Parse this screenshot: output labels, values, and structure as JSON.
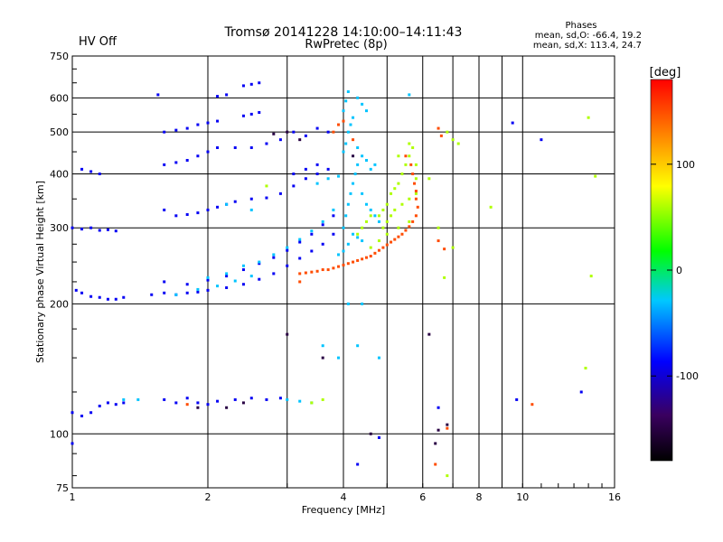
{
  "header": {
    "status": "HV Off",
    "status_color": "#cc0000",
    "title": "Tromsø 20141228 14:10:00–14:11:43",
    "subtitle": "RwPretec (8p)",
    "stats_heading": "Phases",
    "stats_o": "mean, sd,O: -66.4, 19.2",
    "stats_x": "mean, sd,X: 113.4, 24.7"
  },
  "chart_data": {
    "type": "scatter",
    "xlabel": "Frequency [MHz]",
    "ylabel": "Stationary phase Virtual Height [km]",
    "x_scale": "log",
    "y_scale": "log",
    "xlim": [
      1,
      16
    ],
    "ylim": [
      75,
      750
    ],
    "x_ticks": [
      1,
      2,
      4,
      6,
      8,
      10,
      16
    ],
    "x_minor": [
      3,
      5,
      7,
      9
    ],
    "y_ticks": [
      75,
      100,
      200,
      300,
      400,
      500,
      600,
      750
    ],
    "grid": true,
    "colorbar": {
      "label": "[deg]",
      "ticks": [
        100,
        0,
        -100
      ],
      "range": [
        -180,
        180
      ],
      "colors": [
        "#000000",
        "#3a0060",
        "#0000ff",
        "#00c8ff",
        "#00ff00",
        "#ffff00",
        "#ff8000",
        "#ff0000"
      ]
    },
    "series": [
      {
        "color_phase": -90,
        "points": [
          [
            1.05,
            410
          ],
          [
            1.1,
            405
          ],
          [
            1.15,
            400
          ],
          [
            1.0,
            300
          ],
          [
            1.05,
            298
          ],
          [
            1.1,
            300
          ],
          [
            1.15,
            296
          ],
          [
            1.2,
            297
          ],
          [
            1.25,
            295
          ],
          [
            1.02,
            215
          ],
          [
            1.05,
            212
          ],
          [
            1.1,
            208
          ],
          [
            1.15,
            207
          ],
          [
            1.2,
            205
          ],
          [
            1.25,
            205
          ],
          [
            1.3,
            207
          ],
          [
            1.0,
            112
          ],
          [
            1.05,
            110
          ],
          [
            1.1,
            112
          ],
          [
            1.15,
            116
          ],
          [
            1.2,
            118
          ],
          [
            1.25,
            117
          ],
          [
            1.3,
            118
          ],
          [
            1.6,
            420
          ],
          [
            1.7,
            425
          ],
          [
            1.8,
            430
          ],
          [
            1.9,
            440
          ],
          [
            2.0,
            450
          ],
          [
            2.1,
            460
          ],
          [
            1.6,
            500
          ],
          [
            1.7,
            505
          ],
          [
            1.8,
            510
          ],
          [
            1.9,
            520
          ],
          [
            2.0,
            525
          ],
          [
            2.1,
            530
          ],
          [
            2.3,
            460
          ],
          [
            2.5,
            460
          ],
          [
            2.7,
            470
          ],
          [
            2.9,
            480
          ],
          [
            3.1,
            500
          ],
          [
            3.3,
            490
          ],
          [
            3.5,
            510
          ],
          [
            3.7,
            500
          ],
          [
            2.4,
            545
          ],
          [
            2.5,
            550
          ],
          [
            2.6,
            555
          ],
          [
            2.4,
            640
          ],
          [
            2.5,
            645
          ],
          [
            2.6,
            650
          ],
          [
            1.6,
            330
          ],
          [
            1.7,
            320
          ],
          [
            1.8,
            322
          ],
          [
            1.9,
            325
          ],
          [
            2.0,
            330
          ],
          [
            2.1,
            335
          ],
          [
            2.2,
            340
          ],
          [
            2.3,
            345
          ],
          [
            2.5,
            350
          ],
          [
            2.7,
            352
          ],
          [
            2.9,
            360
          ],
          [
            3.1,
            375
          ],
          [
            3.3,
            390
          ],
          [
            3.5,
            400
          ],
          [
            3.7,
            410
          ],
          [
            1.5,
            210
          ],
          [
            1.6,
            212
          ],
          [
            1.7,
            210
          ],
          [
            1.8,
            212
          ],
          [
            1.9,
            213
          ],
          [
            2.0,
            215
          ],
          [
            2.2,
            218
          ],
          [
            2.4,
            222
          ],
          [
            2.6,
            228
          ],
          [
            2.8,
            235
          ],
          [
            3.0,
            245
          ],
          [
            3.2,
            255
          ],
          [
            3.4,
            265
          ],
          [
            3.6,
            275
          ],
          [
            3.8,
            290
          ],
          [
            1.6,
            225
          ],
          [
            1.8,
            222
          ],
          [
            2.0,
            227
          ],
          [
            2.2,
            232
          ],
          [
            2.4,
            240
          ],
          [
            2.6,
            248
          ],
          [
            2.8,
            256
          ],
          [
            3.0,
            266
          ],
          [
            3.2,
            278
          ],
          [
            3.4,
            290
          ],
          [
            3.6,
            305
          ],
          [
            3.8,
            320
          ],
          [
            3.1,
            400
          ],
          [
            3.3,
            410
          ],
          [
            3.5,
            420
          ],
          [
            1.6,
            120
          ],
          [
            1.7,
            118
          ],
          [
            1.8,
            121
          ],
          [
            1.9,
            118
          ],
          [
            2.0,
            117
          ],
          [
            2.1,
            119
          ],
          [
            2.3,
            120
          ],
          [
            2.5,
            121
          ],
          [
            2.7,
            120
          ],
          [
            2.9,
            121
          ],
          [
            1.55,
            610
          ],
          [
            2.1,
            605
          ],
          [
            2.2,
            610
          ],
          [
            9.5,
            525
          ],
          [
            11,
            480
          ],
          [
            6.5,
            115
          ],
          [
            9.7,
            120
          ],
          [
            13.5,
            125
          ],
          [
            4.3,
            85
          ],
          [
            4.8,
            98
          ],
          [
            1.0,
            95
          ]
        ]
      },
      {
        "color_phase": -30,
        "points": [
          [
            4.0,
            300
          ],
          [
            4.05,
            320
          ],
          [
            4.1,
            340
          ],
          [
            4.15,
            360
          ],
          [
            4.2,
            380
          ],
          [
            4.25,
            400
          ],
          [
            4.3,
            420
          ],
          [
            4.0,
            450
          ],
          [
            4.05,
            470
          ],
          [
            4.1,
            500
          ],
          [
            4.15,
            520
          ],
          [
            4.2,
            540
          ],
          [
            4.0,
            560
          ],
          [
            4.05,
            590
          ],
          [
            4.1,
            620
          ],
          [
            4.3,
            600
          ],
          [
            4.4,
            580
          ],
          [
            4.5,
            560
          ],
          [
            4.3,
            460
          ],
          [
            4.4,
            440
          ],
          [
            4.5,
            430
          ],
          [
            4.6,
            410
          ],
          [
            4.7,
            420
          ],
          [
            4.4,
            360
          ],
          [
            4.5,
            340
          ],
          [
            4.6,
            330
          ],
          [
            4.7,
            320
          ],
          [
            4.8,
            310
          ],
          [
            4.2,
            290
          ],
          [
            4.3,
            285
          ],
          [
            4.4,
            280
          ],
          [
            3.9,
            260
          ],
          [
            4.0,
            265
          ],
          [
            4.1,
            275
          ],
          [
            2.0,
            230
          ],
          [
            2.2,
            235
          ],
          [
            2.4,
            245
          ],
          [
            2.6,
            250
          ],
          [
            2.8,
            260
          ],
          [
            3.0,
            270
          ],
          [
            3.2,
            282
          ],
          [
            3.4,
            295
          ],
          [
            3.6,
            310
          ],
          [
            3.8,
            330
          ],
          [
            3.5,
            380
          ],
          [
            3.7,
            390
          ],
          [
            3.9,
            395
          ],
          [
            1.7,
            210
          ],
          [
            1.9,
            216
          ],
          [
            2.1,
            220
          ],
          [
            2.3,
            226
          ],
          [
            2.5,
            232
          ],
          [
            3.0,
            120
          ],
          [
            3.2,
            119
          ],
          [
            3.4,
            118
          ],
          [
            1.3,
            120
          ],
          [
            1.4,
            120
          ],
          [
            5.6,
            610
          ],
          [
            4.4,
            200
          ],
          [
            3.6,
            160
          ],
          [
            4.3,
            160
          ],
          [
            2.2,
            340
          ],
          [
            2.5,
            330
          ],
          [
            4.1,
            200
          ],
          [
            3.9,
            150
          ],
          [
            4.8,
            150
          ]
        ]
      },
      {
        "color_phase": 60,
        "points": [
          [
            4.8,
            320
          ],
          [
            4.9,
            330
          ],
          [
            5.0,
            340
          ],
          [
            5.1,
            360
          ],
          [
            5.2,
            370
          ],
          [
            5.3,
            380
          ],
          [
            5.4,
            400
          ],
          [
            5.5,
            420
          ],
          [
            5.6,
            440
          ],
          [
            5.7,
            460
          ],
          [
            4.9,
            300
          ],
          [
            5.0,
            310
          ],
          [
            5.1,
            320
          ],
          [
            5.2,
            330
          ],
          [
            5.4,
            340
          ],
          [
            5.6,
            350
          ],
          [
            5.8,
            360
          ],
          [
            5.8,
            390
          ],
          [
            5.8,
            420
          ],
          [
            4.6,
            270
          ],
          [
            4.8,
            280
          ],
          [
            5.0,
            290
          ],
          [
            5.3,
            300
          ],
          [
            5.6,
            310
          ],
          [
            6.8,
            500
          ],
          [
            7.0,
            480
          ],
          [
            7.2,
            470
          ],
          [
            4.3,
            290
          ],
          [
            4.4,
            300
          ],
          [
            4.5,
            310
          ],
          [
            4.6,
            320
          ],
          [
            8.5,
            335
          ],
          [
            5.3,
            440
          ],
          [
            5.6,
            470
          ],
          [
            2.7,
            375
          ],
          [
            3.6,
            120
          ],
          [
            3.4,
            118
          ],
          [
            6.5,
            300
          ],
          [
            6.7,
            230
          ],
          [
            6.2,
            390
          ],
          [
            14,
            540
          ],
          [
            14.5,
            395
          ],
          [
            14.2,
            232
          ],
          [
            13.8,
            142
          ],
          [
            7.0,
            270
          ],
          [
            6.8,
            80
          ]
        ]
      },
      {
        "color_phase": 150,
        "points": [
          [
            3.2,
            235
          ],
          [
            3.3,
            236
          ],
          [
            3.4,
            237
          ],
          [
            3.5,
            238
          ],
          [
            3.6,
            240
          ],
          [
            3.7,
            240
          ],
          [
            3.8,
            242
          ],
          [
            3.9,
            244
          ],
          [
            4.0,
            246
          ],
          [
            4.1,
            248
          ],
          [
            4.2,
            250
          ],
          [
            4.3,
            252
          ],
          [
            4.4,
            254
          ],
          [
            4.5,
            256
          ],
          [
            4.6,
            258
          ],
          [
            4.7,
            262
          ],
          [
            4.8,
            266
          ],
          [
            4.9,
            270
          ],
          [
            5.0,
            274
          ],
          [
            5.1,
            278
          ],
          [
            5.2,
            282
          ],
          [
            5.3,
            286
          ],
          [
            5.4,
            290
          ],
          [
            5.5,
            296
          ],
          [
            5.6,
            302
          ],
          [
            5.7,
            310
          ],
          [
            5.8,
            320
          ],
          [
            5.85,
            335
          ],
          [
            5.8,
            350
          ],
          [
            5.8,
            365
          ],
          [
            5.75,
            380
          ],
          [
            5.7,
            400
          ],
          [
            5.65,
            420
          ],
          [
            5.5,
            440
          ],
          [
            4.0,
            530
          ],
          [
            3.9,
            520
          ],
          [
            3.8,
            500
          ],
          [
            4.2,
            480
          ],
          [
            6.5,
            510
          ],
          [
            6.6,
            490
          ],
          [
            6.5,
            280
          ],
          [
            6.7,
            268
          ],
          [
            1.8,
            117
          ],
          [
            3.2,
            225
          ],
          [
            10.5,
            117
          ],
          [
            6.8,
            103
          ],
          [
            6.4,
            85
          ]
        ]
      },
      {
        "color_phase": -150,
        "points": [
          [
            3.0,
            500
          ],
          [
            2.8,
            495
          ],
          [
            3.2,
            480
          ],
          [
            2.2,
            115
          ],
          [
            1.9,
            115
          ],
          [
            2.4,
            118
          ],
          [
            6.5,
            102
          ],
          [
            6.8,
            105
          ],
          [
            4.2,
            440
          ],
          [
            6.2,
            170
          ],
          [
            6.4,
            95
          ],
          [
            4.6,
            100
          ],
          [
            3.0,
            170
          ],
          [
            3.6,
            150
          ]
        ]
      }
    ]
  }
}
